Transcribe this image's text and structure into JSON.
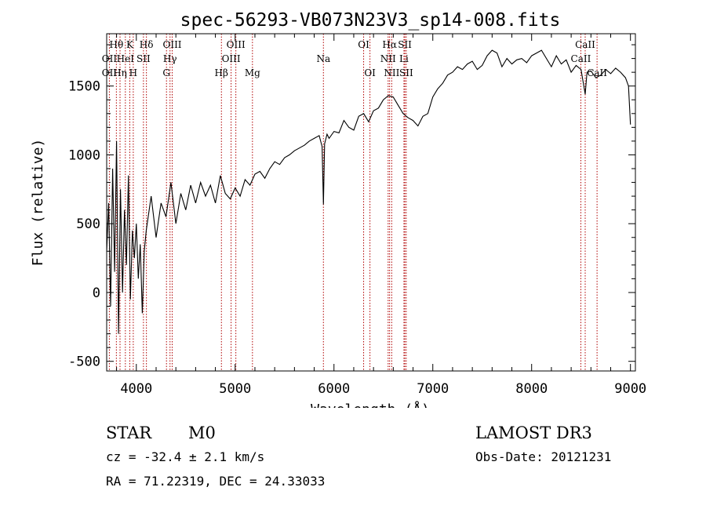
{
  "chart_data": {
    "type": "line",
    "title": "spec-56293-VB073N23V3_sp14-008.fits",
    "xlabel": "Wavelength (Å)",
    "ylabel": "Flux (relative)",
    "xlim": [
      3700,
      9050
    ],
    "ylim": [
      -570,
      1880
    ],
    "xticks": [
      4000,
      5000,
      6000,
      7000,
      8000,
      9000
    ],
    "yticks": [
      -500,
      0,
      500,
      1000,
      1500
    ],
    "grid": false,
    "series": [
      {
        "name": "flux",
        "x": [
          3700,
          3720,
          3740,
          3760,
          3780,
          3800,
          3820,
          3840,
          3860,
          3880,
          3900,
          3920,
          3940,
          3960,
          3980,
          4000,
          4020,
          4040,
          4060,
          4080,
          4100,
          4150,
          4200,
          4250,
          4300,
          4350,
          4400,
          4450,
          4500,
          4550,
          4600,
          4650,
          4700,
          4750,
          4800,
          4850,
          4900,
          4950,
          5000,
          5050,
          5100,
          5150,
          5200,
          5250,
          5300,
          5350,
          5400,
          5450,
          5500,
          5550,
          5600,
          5650,
          5700,
          5750,
          5800,
          5850,
          5880,
          5893,
          5905,
          5930,
          5950,
          6000,
          6050,
          6100,
          6150,
          6200,
          6250,
          6300,
          6350,
          6400,
          6450,
          6500,
          6550,
          6600,
          6650,
          6700,
          6750,
          6800,
          6850,
          6900,
          6950,
          7000,
          7050,
          7100,
          7150,
          7200,
          7250,
          7300,
          7350,
          7400,
          7450,
          7500,
          7550,
          7600,
          7650,
          7700,
          7750,
          7800,
          7850,
          7900,
          7950,
          8000,
          8050,
          8100,
          8150,
          8200,
          8250,
          8300,
          8350,
          8400,
          8450,
          8500,
          8542,
          8560,
          8600,
          8650,
          8700,
          8750,
          8800,
          8850,
          8900,
          8950,
          8980,
          9000
        ],
        "values": [
          300,
          650,
          -100,
          900,
          150,
          1100,
          -300,
          750,
          0,
          600,
          200,
          850,
          -50,
          450,
          250,
          500,
          100,
          350,
          -150,
          300,
          450,
          700,
          400,
          650,
          550,
          800,
          500,
          720,
          600,
          780,
          650,
          800,
          700,
          780,
          650,
          850,
          720,
          680,
          760,
          700,
          820,
          780,
          860,
          880,
          830,
          900,
          950,
          930,
          980,
          1000,
          1030,
          1050,
          1070,
          1100,
          1120,
          1140,
          1060,
          640,
          1080,
          1150,
          1120,
          1170,
          1160,
          1250,
          1200,
          1180,
          1280,
          1300,
          1240,
          1320,
          1340,
          1400,
          1430,
          1420,
          1360,
          1300,
          1270,
          1250,
          1210,
          1280,
          1300,
          1420,
          1480,
          1520,
          1580,
          1600,
          1640,
          1620,
          1660,
          1680,
          1620,
          1650,
          1720,
          1760,
          1740,
          1640,
          1700,
          1660,
          1690,
          1700,
          1670,
          1720,
          1740,
          1760,
          1700,
          1640,
          1720,
          1660,
          1690,
          1600,
          1650,
          1620,
          1440,
          1600,
          1610,
          1560,
          1580,
          1620,
          1590,
          1630,
          1600,
          1560,
          1500,
          1220
        ]
      }
    ],
    "spectral_lines": [
      {
        "label": "Hθ",
        "wave": 3798,
        "row": 1
      },
      {
        "label": "OII",
        "wave": 3727,
        "row": 2
      },
      {
        "label": "OII",
        "wave": 3727,
        "row": 3
      },
      {
        "label": "Hη",
        "wave": 3835,
        "row": 3
      },
      {
        "label": "K",
        "wave": 3934,
        "row": 1
      },
      {
        "label": "HeI",
        "wave": 3889,
        "row": 2
      },
      {
        "label": "SII",
        "wave": 4072,
        "row": 2
      },
      {
        "label": "H",
        "wave": 3969,
        "row": 3
      },
      {
        "label": "Hδ",
        "wave": 4102,
        "row": 1
      },
      {
        "label": "OIII",
        "wave": 4363,
        "row": 1
      },
      {
        "label": "Hγ",
        "wave": 4341,
        "row": 2
      },
      {
        "label": "G",
        "wave": 4305,
        "row": 3
      },
      {
        "label": "Hβ",
        "wave": 4861,
        "row": 3
      },
      {
        "label": "OIII",
        "wave": 5007,
        "row": 1
      },
      {
        "label": "OIII",
        "wave": 4959,
        "row": 2
      },
      {
        "label": "Mg",
        "wave": 5175,
        "row": 3
      },
      {
        "label": "Na",
        "wave": 5893,
        "row": 2
      },
      {
        "label": "OI",
        "wave": 6300,
        "row": 1
      },
      {
        "label": "OI",
        "wave": 6364,
        "row": 3
      },
      {
        "label": "Hα",
        "wave": 6563,
        "row": 1
      },
      {
        "label": "SII",
        "wave": 6717,
        "row": 1
      },
      {
        "label": "NII",
        "wave": 6548,
        "row": 2
      },
      {
        "label": "Li",
        "wave": 6708,
        "row": 2
      },
      {
        "label": "NII",
        "wave": 6584,
        "row": 3
      },
      {
        "label": "SII",
        "wave": 6731,
        "row": 3
      },
      {
        "label": "CaII",
        "wave": 8542,
        "row": 1
      },
      {
        "label": "CaII",
        "wave": 8498,
        "row": 2
      },
      {
        "label": "CaII",
        "wave": 8662,
        "row": 3
      }
    ]
  },
  "info": {
    "object_class": "STAR",
    "subclass": "M0",
    "survey": "LAMOST DR3",
    "cz": "cz = -32.4 ± 2.1 km/s",
    "obs_date": "Obs-Date: 20121231",
    "coords": "RA =  71.22319, DEC =  24.33033"
  },
  "colors": {
    "line_marker": "#b00000",
    "spectrum": "#000000",
    "axis": "#000000"
  }
}
